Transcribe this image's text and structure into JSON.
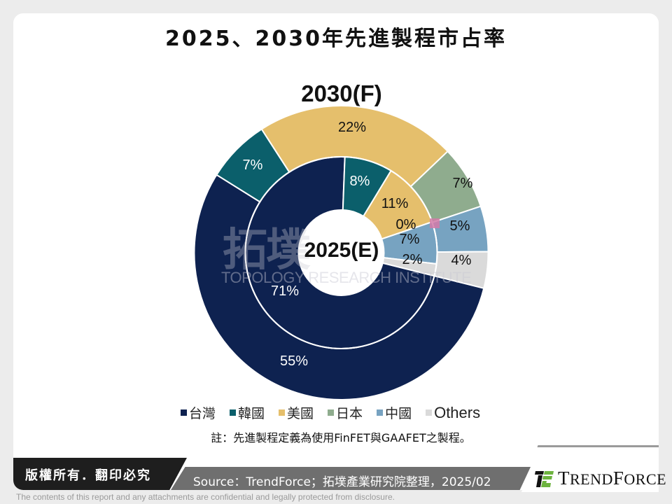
{
  "title": "2025、2030年先進製程市占率",
  "chart_data": {
    "type": "pie",
    "subtype": "nested-donut",
    "title": "2025、2030年先進製程市占率",
    "categories": [
      "台灣",
      "韓國",
      "美國",
      "日本",
      "中國",
      "Others"
    ],
    "colors": [
      "#0e2250",
      "#0b5f6b",
      "#e5bf6c",
      "#8fac8e",
      "#77a3c1",
      "#dadada"
    ],
    "label_colors": [
      "#ffffff",
      "#ffffff",
      "#111111",
      "#111111",
      "#111111",
      "#111111"
    ],
    "series": [
      {
        "name": "2025(E)",
        "ring": "inner",
        "values": [
          71,
          8,
          11,
          0,
          7,
          2
        ],
        "labels": [
          "71%",
          "8%",
          "11%",
          "0%",
          "7%",
          "2%"
        ]
      },
      {
        "name": "2030(F)",
        "ring": "outer",
        "values": [
          55,
          7,
          22,
          7,
          5,
          4
        ],
        "labels": [
          "55%",
          "7%",
          "22%",
          "7%",
          "5%",
          "4%"
        ]
      }
    ],
    "outer_title": "2030(F)",
    "inner_title": "2025(E)",
    "legend_position": "bottom",
    "unit": "%"
  },
  "legend": [
    "台灣",
    "韓國",
    "美國",
    "日本",
    "中國",
    "Others"
  ],
  "note": "註：先進製程定義為使用FinFET與GAAFET之製程。",
  "watermark": {
    "cn": "拓墣",
    "en": "TOPOLOGY RESEARCH INSTITUTE"
  },
  "footer": {
    "copyright": "版權所有．翻印必究",
    "source": "Source：TrendForce；拓墣產業研究院整理，2025/02",
    "logo": "TrendForce",
    "disclaimer": "The contents of this report and any attachments are confidential and legally protected from disclosure."
  }
}
